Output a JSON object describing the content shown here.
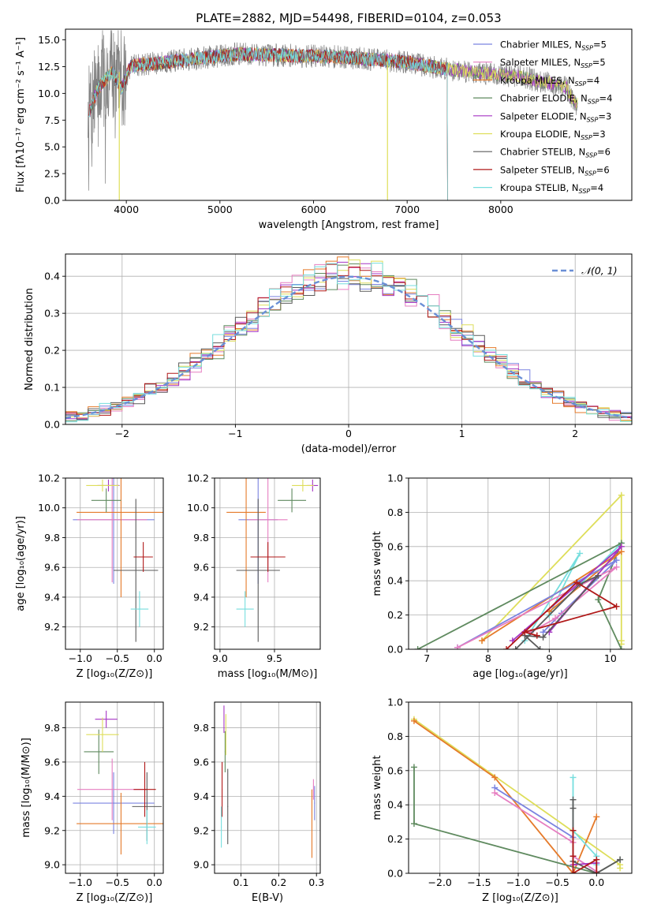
{
  "colors": {
    "Chabrier MILES": "#7b83e0",
    "Salpeter MILES": "#e67ec1",
    "Kroupa MILES": "#e57a2a",
    "Chabrier ELODIE": "#5f8a5f",
    "Salpeter ELODIE": "#a535c4",
    "Kroupa ELODIE": "#dede5a",
    "Chabrier STELIB": "#5b5b5b",
    "Salpeter STELIB": "#b01818",
    "Kroupa STELIB": "#76dede",
    "observed": "#808080",
    "normal": "#6a8fd6"
  },
  "chart_data": [
    {
      "id": "spectrum",
      "type": "line",
      "title": "PLATE=2882, MJD=54498, FIBERID=0104, z=0.053",
      "xlabel": "wavelength [Angstrom, rest frame]",
      "ylabel": "Flux [fλ10⁻¹⁷ erg cm⁻² s⁻¹ A⁻¹]",
      "xlim": [
        3350,
        9400
      ],
      "ylim": [
        0,
        16
      ],
      "xticks": [
        4000,
        5000,
        6000,
        7000,
        8000
      ],
      "yticks": [
        0.0,
        2.5,
        5.0,
        7.5,
        10.0,
        12.5,
        15.0
      ],
      "legend_position": "right",
      "legend": [
        {
          "pre": "Chabrier MILES, N",
          "sub": "SSP",
          "post": "=5"
        },
        {
          "pre": "Salpeter MILES, N",
          "sub": "SSP",
          "post": "=5"
        },
        {
          "pre": "Kroupa MILES, N",
          "sub": "SSP",
          "post": "=4"
        },
        {
          "pre": "Chabrier ELODIE, N",
          "sub": "SSP",
          "post": "=4"
        },
        {
          "pre": "Salpeter ELODIE, N",
          "sub": "SSP",
          "post": "=3"
        },
        {
          "pre": "Kroupa ELODIE, N",
          "sub": "SSP",
          "post": "=3"
        },
        {
          "pre": "Chabrier STELIB, N",
          "sub": "SSP",
          "post": "=6"
        },
        {
          "pre": "Salpeter STELIB, N",
          "sub": "SSP",
          "post": "=6"
        },
        {
          "pre": "Kroupa STELIB, N",
          "sub": "SSP",
          "post": "=4"
        }
      ],
      "continuum": [
        [
          3600,
          8.2
        ],
        [
          3700,
          10.5
        ],
        [
          3850,
          12.0
        ],
        [
          3950,
          10.5
        ],
        [
          4050,
          12.6
        ],
        [
          4300,
          12.8
        ],
        [
          4600,
          13.1
        ],
        [
          4900,
          13.4
        ],
        [
          5200,
          13.7
        ],
        [
          5500,
          13.6
        ],
        [
          5900,
          13.5
        ],
        [
          6300,
          13.4
        ],
        [
          6600,
          13.2
        ],
        [
          7000,
          12.9
        ],
        [
          7400,
          12.3
        ],
        [
          7800,
          11.9
        ],
        [
          8200,
          11.6
        ],
        [
          8500,
          11.0
        ],
        [
          8700,
          10.5
        ],
        [
          8800,
          9.0
        ]
      ]
    },
    {
      "id": "residuals",
      "type": "bar",
      "xlabel": "(data-model)/error",
      "ylabel": "Normed distribution",
      "xlim": [
        -2.5,
        2.5
      ],
      "ylim": [
        0,
        0.46
      ],
      "xticks": [
        -2,
        -1,
        0,
        1,
        2
      ],
      "yticks": [
        0.0,
        0.1,
        0.2,
        0.3,
        0.4
      ],
      "legend_position": "top-right",
      "legend": "𝒩(0, 1)"
    },
    {
      "id": "age-vs-Z",
      "type": "scatter",
      "xlabel": "Z [log₁₀(Z/Z⊙)]",
      "ylabel": "age  [log₁₀(age/yr)]",
      "xlim": [
        -1.2,
        0.12
      ],
      "ylim": [
        9.05,
        10.2
      ],
      "xticks": [
        -1.0,
        -0.5,
        0.0
      ],
      "yticks": [
        9.2,
        9.4,
        9.6,
        9.8,
        10.0,
        10.2
      ],
      "points": [
        {
          "s": "Chabrier MILES",
          "x": -0.55,
          "y": 9.92,
          "xe": 0.55,
          "ye": 0.43
        },
        {
          "s": "Salpeter MILES",
          "x": -0.57,
          "y": 9.92,
          "xe": 0.47,
          "ye": 0.42
        },
        {
          "s": "Kroupa MILES",
          "x": -0.45,
          "y": 9.97,
          "xe": 0.6,
          "ye": 0.57
        },
        {
          "s": "Chabrier ELODIE",
          "x": -0.65,
          "y": 10.05,
          "xe": 0.2,
          "ye": 0.08
        },
        {
          "s": "Salpeter ELODIE",
          "x": -0.62,
          "y": 10.15,
          "xe": 0.15,
          "ye": 0.04
        },
        {
          "s": "Kroupa ELODIE",
          "x": -0.7,
          "y": 10.15,
          "xe": 0.22,
          "ye": 0.04
        },
        {
          "s": "Chabrier STELIB",
          "x": -0.25,
          "y": 9.58,
          "xe": 0.3,
          "ye": 0.48
        },
        {
          "s": "Salpeter STELIB",
          "x": -0.15,
          "y": 9.67,
          "xe": 0.13,
          "ye": 0.1
        },
        {
          "s": "Kroupa STELIB",
          "x": -0.2,
          "y": 9.32,
          "xe": 0.12,
          "ye": 0.12
        }
      ]
    },
    {
      "id": "age-vs-mass",
      "type": "scatter",
      "xlabel": "mass [log₁₀(M/M⊙)]",
      "ylabel": "",
      "xlim": [
        8.95,
        9.92
      ],
      "ylim": [
        9.05,
        10.2
      ],
      "xticks": [
        9.0,
        9.5
      ],
      "yticks": [
        9.2,
        9.4,
        9.6,
        9.8,
        10.0,
        10.2
      ],
      "points": [
        {
          "s": "Chabrier MILES",
          "x": 9.35,
          "y": 9.92,
          "xe": 0.18,
          "ye": 0.43
        },
        {
          "s": "Salpeter MILES",
          "x": 9.44,
          "y": 9.92,
          "xe": 0.18,
          "ye": 0.42
        },
        {
          "s": "Kroupa MILES",
          "x": 9.24,
          "y": 9.97,
          "xe": 0.18,
          "ye": 0.57
        },
        {
          "s": "Chabrier ELODIE",
          "x": 9.66,
          "y": 10.05,
          "xe": 0.13,
          "ye": 0.08
        },
        {
          "s": "Salpeter ELODIE",
          "x": 9.85,
          "y": 10.15,
          "xe": 0.05,
          "ye": 0.04
        },
        {
          "s": "Kroupa ELODIE",
          "x": 9.76,
          "y": 10.15,
          "xe": 0.1,
          "ye": 0.04
        },
        {
          "s": "Chabrier STELIB",
          "x": 9.35,
          "y": 9.58,
          "xe": 0.2,
          "ye": 0.48
        },
        {
          "s": "Salpeter STELIB",
          "x": 9.44,
          "y": 9.67,
          "xe": 0.16,
          "ye": 0.1
        },
        {
          "s": "Kroupa STELIB",
          "x": 9.23,
          "y": 9.32,
          "xe": 0.08,
          "ye": 0.12
        }
      ]
    },
    {
      "id": "weight-vs-age",
      "type": "line",
      "xlabel": "age  [log₁₀(age/yr)]",
      "ylabel": "mass weight",
      "xlim": [
        6.7,
        10.35
      ],
      "ylim": [
        0,
        1.0
      ],
      "xticks": [
        7,
        8,
        9,
        10
      ],
      "yticks": [
        0.0,
        0.2,
        0.4,
        0.6,
        0.8,
        1.0
      ],
      "series": [
        {
          "s": "Kroupa ELODIE",
          "points": [
            [
              7.9,
              0.05
            ],
            [
              10.18,
              0.9
            ],
            [
              10.18,
              0.05
            ],
            [
              10.18,
              0.03
            ]
          ]
        },
        {
          "s": "Kroupa STELIB",
          "points": [
            [
              8.6,
              0.05
            ],
            [
              9.5,
              0.56
            ],
            [
              9.0,
              0.2
            ],
            [
              10.18,
              0.62
            ]
          ]
        },
        {
          "s": "Chabrier ELODIE",
          "points": [
            [
              6.85,
              0.0
            ],
            [
              10.18,
              0.62
            ],
            [
              9.8,
              0.29
            ],
            [
              10.18,
              0.0
            ]
          ]
        },
        {
          "s": "Kroupa MILES",
          "points": [
            [
              7.9,
              0.05
            ],
            [
              10.18,
              0.57
            ],
            [
              9.0,
              0.22
            ]
          ]
        },
        {
          "s": "Chabrier MILES",
          "points": [
            [
              7.5,
              0.01
            ],
            [
              10.1,
              0.52
            ],
            [
              9.2,
              0.21
            ],
            [
              8.9,
              0.1
            ]
          ]
        },
        {
          "s": "Salpeter MILES",
          "points": [
            [
              7.5,
              0.01
            ],
            [
              10.1,
              0.48
            ],
            [
              9.1,
              0.18
            ],
            [
              8.7,
              0.1
            ]
          ]
        },
        {
          "s": "Salpeter ELODIE",
          "points": [
            [
              8.4,
              0.05
            ],
            [
              10.18,
              0.6
            ],
            [
              9.0,
              0.1
            ]
          ]
        },
        {
          "s": "Chabrier STELIB",
          "points": [
            [
              8.45,
              0.0
            ],
            [
              9.5,
              0.38
            ],
            [
              9.8,
              0.43
            ],
            [
              8.9,
              0.07
            ],
            [
              8.6,
              0.08
            ],
            [
              8.85,
              0.0
            ]
          ]
        },
        {
          "s": "Salpeter STELIB",
          "points": [
            [
              8.3,
              0.0
            ],
            [
              9.45,
              0.39
            ],
            [
              10.1,
              0.25
            ],
            [
              8.6,
              0.1
            ],
            [
              8.8,
              0.08
            ]
          ]
        }
      ]
    },
    {
      "id": "mass-vs-Z",
      "type": "scatter",
      "xlabel": "Z [log₁₀(Z/Z⊙)]",
      "ylabel": "mass [log₁₀(M/M⊙)]",
      "xlim": [
        -1.2,
        0.12
      ],
      "ylim": [
        8.95,
        9.95
      ],
      "xticks": [
        -1.0,
        -0.5,
        0.0
      ],
      "yticks": [
        9.0,
        9.2,
        9.4,
        9.6,
        9.8
      ],
      "points": [
        {
          "s": "Chabrier MILES",
          "x": -0.55,
          "y": 9.36,
          "xe": 0.55,
          "ye": 0.18
        },
        {
          "s": "Salpeter MILES",
          "x": -0.57,
          "y": 9.44,
          "xe": 0.47,
          "ye": 0.18
        },
        {
          "s": "Kroupa MILES",
          "x": -0.45,
          "y": 9.24,
          "xe": 0.6,
          "ye": 0.18
        },
        {
          "s": "Chabrier ELODIE",
          "x": -0.75,
          "y": 9.66,
          "xe": 0.2,
          "ye": 0.13
        },
        {
          "s": "Salpeter ELODIE",
          "x": -0.65,
          "y": 9.85,
          "xe": 0.15,
          "ye": 0.05
        },
        {
          "s": "Kroupa ELODIE",
          "x": -0.7,
          "y": 9.76,
          "xe": 0.22,
          "ye": 0.1
        },
        {
          "s": "Chabrier STELIB",
          "x": -0.1,
          "y": 9.34,
          "xe": 0.2,
          "ye": 0.2
        },
        {
          "s": "Salpeter STELIB",
          "x": -0.13,
          "y": 9.44,
          "xe": 0.15,
          "ye": 0.16
        },
        {
          "s": "Kroupa STELIB",
          "x": -0.1,
          "y": 9.22,
          "xe": 0.12,
          "ye": 0.1
        }
      ]
    },
    {
      "id": "mass-vs-EBV",
      "type": "scatter",
      "xlabel": "E(B-V)",
      "ylabel": "",
      "xlim": [
        0.03,
        0.31
      ],
      "ylim": [
        8.95,
        9.95
      ],
      "xticks": [
        0.1,
        0.2,
        0.3
      ],
      "yticks": [
        9.0,
        9.2,
        9.4,
        9.6,
        9.8
      ],
      "points": [
        {
          "s": "Chabrier MILES",
          "x": 0.295,
          "y": 9.36,
          "xe": 0.001,
          "ye": 0.1
        },
        {
          "s": "Salpeter MILES",
          "x": 0.292,
          "y": 9.44,
          "xe": 0.001,
          "ye": 0.06
        },
        {
          "s": "Kroupa MILES",
          "x": 0.288,
          "y": 9.24,
          "xe": 0.001,
          "ye": 0.2
        },
        {
          "s": "Chabrier ELODIE",
          "x": 0.058,
          "y": 9.66,
          "xe": 0.001,
          "ye": 0.12
        },
        {
          "s": "Salpeter ELODIE",
          "x": 0.055,
          "y": 9.85,
          "xe": 0.001,
          "ye": 0.08
        },
        {
          "s": "Kroupa ELODIE",
          "x": 0.06,
          "y": 9.76,
          "xe": 0.001,
          "ye": 0.12
        },
        {
          "s": "Chabrier STELIB",
          "x": 0.065,
          "y": 9.34,
          "xe": 0.001,
          "ye": 0.22
        },
        {
          "s": "Salpeter STELIB",
          "x": 0.05,
          "y": 9.44,
          "xe": 0.001,
          "ye": 0.16
        },
        {
          "s": "Kroupa STELIB",
          "x": 0.048,
          "y": 9.22,
          "xe": 0.001,
          "ye": 0.12
        }
      ]
    },
    {
      "id": "weight-vs-Z",
      "type": "line",
      "xlabel": "Z [log₁₀(Z/Z⊙)]",
      "ylabel": "mass weight",
      "xlim": [
        -2.4,
        0.45
      ],
      "ylim": [
        0,
        1.0
      ],
      "xticks": [
        -2.0,
        -1.5,
        -1.0,
        -0.5,
        0.0
      ],
      "yticks": [
        0.0,
        0.2,
        0.4,
        0.6,
        0.8,
        1.0
      ],
      "series": [
        {
          "s": "Kroupa ELODIE",
          "points": [
            [
              -2.33,
              0.9
            ],
            [
              0.3,
              0.05
            ],
            [
              0.3,
              0.03
            ]
          ]
        },
        {
          "s": "Kroupa MILES",
          "points": [
            [
              -2.33,
              0.89
            ],
            [
              -1.3,
              0.56
            ],
            [
              -0.3,
              0.0
            ],
            [
              0.0,
              0.33
            ]
          ]
        },
        {
          "s": "Chabrier MILES",
          "points": [
            [
              -1.3,
              0.5
            ],
            [
              -0.3,
              0.21
            ],
            [
              -0.3,
              0.1
            ],
            [
              0.0,
              0.01
            ]
          ]
        },
        {
          "s": "Salpeter MILES",
          "points": [
            [
              -1.3,
              0.47
            ],
            [
              -0.3,
              0.18
            ],
            [
              -0.3,
              0.1
            ],
            [
              0.0,
              0.01
            ]
          ]
        },
        {
          "s": "Kroupa STELIB",
          "points": [
            [
              -0.3,
              0.56
            ],
            [
              -0.3,
              0.25
            ],
            [
              0.0,
              0.1
            ],
            [
              0.0,
              0.05
            ]
          ]
        },
        {
          "s": "Chabrier ELODIE",
          "points": [
            [
              -2.33,
              0.62
            ],
            [
              -2.33,
              0.29
            ],
            [
              0.0,
              0.0
            ],
            [
              0.3,
              0.08
            ]
          ]
        },
        {
          "s": "Salpeter ELODIE",
          "points": [
            [
              -0.3,
              0.1
            ],
            [
              -0.3,
              0.05
            ],
            [
              0.0,
              0.06
            ]
          ]
        },
        {
          "s": "Chabrier STELIB",
          "points": [
            [
              -0.3,
              0.43
            ],
            [
              -0.3,
              0.38
            ],
            [
              -0.3,
              0.07
            ],
            [
              0.0,
              0.0
            ],
            [
              0.3,
              0.08
            ]
          ]
        },
        {
          "s": "Salpeter STELIB",
          "points": [
            [
              -0.3,
              0.25
            ],
            [
              -0.3,
              0.1
            ],
            [
              -0.3,
              0.0
            ],
            [
              0.0,
              0.08
            ],
            [
              0.0,
              0.0
            ]
          ]
        }
      ]
    }
  ]
}
